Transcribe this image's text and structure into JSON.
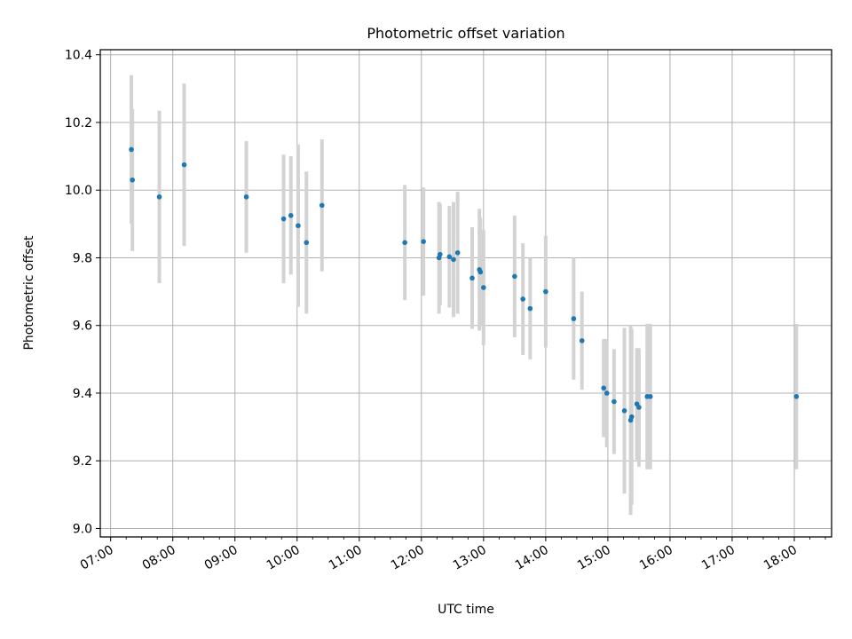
{
  "chart_data": {
    "type": "scatter",
    "title": "Photometric offset variation",
    "xlabel": "UTC time",
    "ylabel": "Photometric offset",
    "x_tick_labels": [
      "07:00",
      "08:00",
      "09:00",
      "10:00",
      "11:00",
      "12:00",
      "13:00",
      "14:00",
      "15:00",
      "16:00",
      "17:00",
      "18:00"
    ],
    "y_tick_labels": [
      "9.0",
      "9.2",
      "9.4",
      "9.6",
      "9.8",
      "10.0",
      "10.2",
      "10.4"
    ],
    "xlim": [
      "06:50",
      "18:36"
    ],
    "ylim": [
      8.975,
      10.415
    ],
    "grid": true,
    "colors": {
      "point": "#1f77b4",
      "errorbar": "#d3d3d3",
      "grid": "#b0b0b0"
    },
    "points": [
      {
        "x": "07:20",
        "y": 10.12,
        "err": 0.22
      },
      {
        "x": "07:21",
        "y": 10.03,
        "err": 0.21
      },
      {
        "x": "07:47",
        "y": 9.98,
        "err": 0.255
      },
      {
        "x": "08:11",
        "y": 10.075,
        "err": 0.24
      },
      {
        "x": "09:11",
        "y": 9.98,
        "err": 0.165
      },
      {
        "x": "09:47",
        "y": 9.915,
        "err": 0.19
      },
      {
        "x": "09:54",
        "y": 9.925,
        "err": 0.175
      },
      {
        "x": "10:01",
        "y": 9.895,
        "err": 0.24
      },
      {
        "x": "10:09",
        "y": 9.845,
        "err": 0.21
      },
      {
        "x": "10:24",
        "y": 9.955,
        "err": 0.195
      },
      {
        "x": "11:44",
        "y": 9.845,
        "err": 0.17
      },
      {
        "x": "12:02",
        "y": 9.848,
        "err": 0.16
      },
      {
        "x": "12:17",
        "y": 9.8,
        "err": 0.165
      },
      {
        "x": "12:18",
        "y": 9.81,
        "err": 0.15
      },
      {
        "x": "12:27",
        "y": 9.803,
        "err": 0.15
      },
      {
        "x": "12:31",
        "y": 9.795,
        "err": 0.17
      },
      {
        "x": "12:35",
        "y": 9.815,
        "err": 0.18
      },
      {
        "x": "12:49",
        "y": 9.74,
        "err": 0.15
      },
      {
        "x": "12:56",
        "y": 9.765,
        "err": 0.18
      },
      {
        "x": "12:57",
        "y": 9.758,
        "err": 0.16
      },
      {
        "x": "13:00",
        "y": 9.712,
        "err": 0.17
      },
      {
        "x": "13:30",
        "y": 9.745,
        "err": 0.18
      },
      {
        "x": "13:38",
        "y": 9.678,
        "err": 0.165
      },
      {
        "x": "13:45",
        "y": 9.65,
        "err": 0.15
      },
      {
        "x": "14:00",
        "y": 9.7,
        "err": 0.165
      },
      {
        "x": "14:27",
        "y": 9.62,
        "err": 0.18
      },
      {
        "x": "14:35",
        "y": 9.555,
        "err": 0.145
      },
      {
        "x": "14:56",
        "y": 9.415,
        "err": 0.145
      },
      {
        "x": "14:59",
        "y": 9.4,
        "err": 0.16
      },
      {
        "x": "15:06",
        "y": 9.375,
        "err": 0.155
      },
      {
        "x": "15:16",
        "y": 9.348,
        "err": 0.245
      },
      {
        "x": "15:22",
        "y": 9.32,
        "err": 0.28
      },
      {
        "x": "15:23",
        "y": 9.33,
        "err": 0.26
      },
      {
        "x": "15:28",
        "y": 9.368,
        "err": 0.165
      },
      {
        "x": "15:30",
        "y": 9.358,
        "err": 0.175
      },
      {
        "x": "15:38",
        "y": 9.39,
        "err": 0.215
      },
      {
        "x": "15:41",
        "y": 9.39,
        "err": 0.215
      },
      {
        "x": "18:02",
        "y": 9.39,
        "err": 0.215
      }
    ]
  }
}
